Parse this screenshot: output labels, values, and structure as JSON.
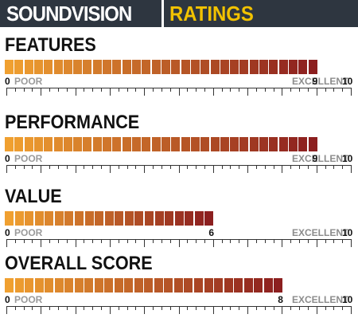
{
  "header": {
    "logo": "SOUNDVISION",
    "title": "RATINGS"
  },
  "scale": {
    "min_label": "0",
    "poor_label": "POOR",
    "excellent_label": "EXCELLENT",
    "max_label": "10",
    "max": 10
  },
  "sections": [
    {
      "title": "FEATURES",
      "score": 9,
      "score_label": "9"
    },
    {
      "title": "PERFORMANCE",
      "score": 9,
      "score_label": "9"
    },
    {
      "title": "VALUE",
      "score": 6,
      "score_label": "6"
    },
    {
      "title": "OVERALL SCORE",
      "score": 8,
      "score_label": "8"
    }
  ],
  "colors": {
    "header_bg": "#2e3640",
    "title_accent": "#f2c200",
    "bar_start": "#f0a030",
    "bar_end": "#8c1f1f"
  }
}
